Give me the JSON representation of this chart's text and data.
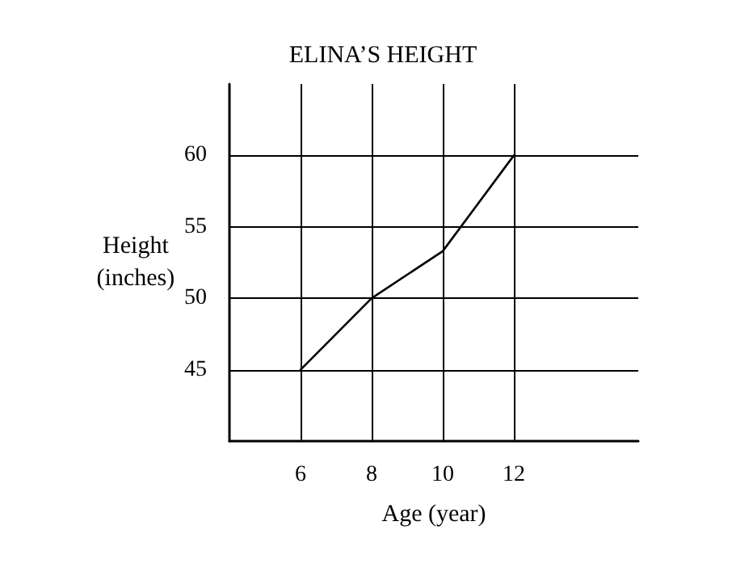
{
  "chart_data": {
    "type": "line",
    "title": "ELINA’S HEIGHT",
    "xlabel": "Age (year)",
    "ylabel": "Height\n(inches)",
    "x": [
      6,
      8,
      10,
      12
    ],
    "series": [
      {
        "color": "#000000",
        "values": [
          45,
          50,
          53.3,
          60
        ]
      }
    ],
    "xlim": [
      4,
      15.5
    ],
    "xticks": [
      6,
      8,
      10,
      12
    ],
    "ylim": [
      40,
      65
    ],
    "yticks": [
      45,
      50,
      55,
      60
    ],
    "grid": true,
    "marker": "none",
    "line_style": "solid"
  }
}
